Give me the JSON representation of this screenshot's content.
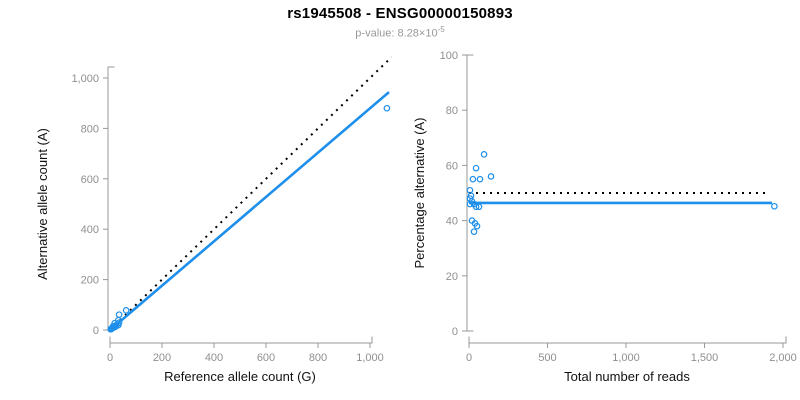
{
  "figure": {
    "title": "rs1945508 - ENSG00000150893",
    "subtitle_prefix": "p-value: 8.28×10",
    "subtitle_exponent": "-5",
    "subtitle_full": "p-value: 8.28×10^-5"
  },
  "colors": {
    "accent_blue": "#1E8FEA",
    "line_black": "#000000",
    "axis_gray": "#999999",
    "tick_label_gray": "#8f8f8f",
    "axis_title_color": "#111111",
    "subtitle_gray": "#999999"
  },
  "chart_data": [
    {
      "type": "scatter",
      "title": "rs1945508 - ENSG00000150893",
      "subtitle": "p-value: 8.28×10^-5",
      "xlabel": "Reference allele count (G)",
      "ylabel": "Alternative allele count (A)",
      "xlim": [
        0,
        1050
      ],
      "ylim": [
        0,
        1050
      ],
      "grid": false,
      "legend": false,
      "xticks": {
        "values": [
          0,
          200,
          400,
          600,
          800,
          1000
        ],
        "labels": [
          "0",
          "200",
          "400",
          "600",
          "800",
          "1,000"
        ]
      },
      "yticks": {
        "values": [
          0,
          200,
          400,
          600,
          800,
          1000
        ],
        "labels": [
          "0",
          "200",
          "400",
          "600",
          "800",
          "1,000"
        ]
      },
      "points": [
        [
          3,
          3
        ],
        [
          3,
          3
        ],
        [
          3,
          3
        ],
        [
          7,
          6
        ],
        [
          10,
          9
        ],
        [
          11,
          8
        ],
        [
          11,
          14
        ],
        [
          17,
          15
        ],
        [
          18,
          27
        ],
        [
          20,
          12
        ],
        [
          23,
          15
        ],
        [
          25,
          20
        ],
        [
          32,
          19
        ],
        [
          32,
          39
        ],
        [
          35,
          29
        ],
        [
          35,
          61
        ],
        [
          62,
          78
        ],
        [
          1065,
          880
        ]
      ],
      "lines": [
        {
          "name": "identity",
          "style": "dotted",
          "color": "#000000",
          "x1": 0,
          "y1": 0,
          "x2": 1083,
          "y2": 1083
        },
        {
          "name": "regression",
          "style": "solid",
          "color": "#1E8FEA",
          "x1": 0,
          "y1": 0,
          "x2": 1073,
          "y2": 944
        }
      ]
    },
    {
      "type": "scatter",
      "xlabel": "Total number of reads",
      "ylabel": "Percentage alternative (A)",
      "xlim": [
        0,
        2020
      ],
      "ylim": [
        0,
        100
      ],
      "grid": false,
      "legend": false,
      "xticks": {
        "values": [
          0,
          500,
          1000,
          1500,
          2000
        ],
        "labels": [
          "0",
          "500",
          "1,000",
          "1,500",
          "2,000"
        ]
      },
      "yticks": {
        "values": [
          0,
          20,
          40,
          60,
          80,
          100
        ],
        "labels": [
          "0",
          "20",
          "40",
          "60",
          "80",
          "100"
        ]
      },
      "points": [
        [
          6,
          51
        ],
        [
          6,
          48
        ],
        [
          6,
          46
        ],
        [
          13,
          49
        ],
        [
          19,
          47
        ],
        [
          19,
          40
        ],
        [
          25,
          55
        ],
        [
          32,
          46
        ],
        [
          32,
          36
        ],
        [
          38,
          39
        ],
        [
          45,
          59
        ],
        [
          45,
          45
        ],
        [
          51,
          38
        ],
        [
          64,
          45
        ],
        [
          70,
          55
        ],
        [
          96,
          64
        ],
        [
          140,
          56
        ],
        [
          1945,
          45.2
        ]
      ],
      "lines": [
        {
          "name": "expected-50pct",
          "style": "dotted",
          "color": "#000000",
          "x1": 0,
          "y1": 50,
          "x2": 1905,
          "y2": 50
        },
        {
          "name": "mean-percentage",
          "style": "solid",
          "color": "#1E8FEA",
          "x1": 0,
          "y1": 46.4,
          "x2": 1930,
          "y2": 46.4
        }
      ]
    }
  ]
}
